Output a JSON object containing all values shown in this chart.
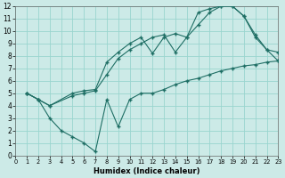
{
  "bg_color": "#cceae7",
  "grid_color": "#99d5cf",
  "line_color": "#1e6e64",
  "marker": "+",
  "xlabel": "Humidex (Indice chaleur)",
  "xlim": [
    0,
    23
  ],
  "ylim": [
    0,
    12
  ],
  "xticks": [
    0,
    1,
    2,
    3,
    4,
    5,
    6,
    7,
    8,
    9,
    10,
    11,
    12,
    13,
    14,
    15,
    16,
    17,
    18,
    19,
    20,
    21,
    22,
    23
  ],
  "yticks": [
    0,
    1,
    2,
    3,
    4,
    5,
    6,
    7,
    8,
    9,
    10,
    11,
    12
  ],
  "line1_x": [
    1,
    2,
    3,
    5,
    6,
    7,
    8,
    9,
    10,
    11,
    12,
    13,
    14,
    15,
    16,
    17,
    18,
    19,
    20,
    21,
    22,
    23
  ],
  "line1_y": [
    5.0,
    4.5,
    4.0,
    5.0,
    5.2,
    5.3,
    7.5,
    8.3,
    9.0,
    9.5,
    8.2,
    9.5,
    9.8,
    9.5,
    10.5,
    11.5,
    12.0,
    12.0,
    11.2,
    9.5,
    8.5,
    8.3
  ],
  "line2_x": [
    1,
    2,
    3,
    5,
    6,
    7,
    8,
    9,
    10,
    11,
    12,
    13,
    14,
    15,
    16,
    17,
    18,
    19,
    20,
    21,
    22,
    23
  ],
  "line2_y": [
    5.0,
    4.5,
    4.0,
    4.8,
    5.0,
    5.2,
    6.5,
    7.8,
    8.5,
    9.0,
    9.5,
    9.7,
    8.3,
    9.5,
    11.5,
    11.8,
    12.0,
    12.0,
    11.2,
    9.7,
    8.5,
    7.6
  ],
  "line3_x": [
    1,
    2,
    3,
    4,
    5,
    6,
    7,
    8,
    9,
    10,
    11,
    12,
    13,
    14,
    15,
    16,
    17,
    18,
    19,
    20,
    21,
    22,
    23
  ],
  "line3_y": [
    5.0,
    4.5,
    3.0,
    2.0,
    1.5,
    1.0,
    0.3,
    4.5,
    2.3,
    4.5,
    5.0,
    5.0,
    5.3,
    5.7,
    6.0,
    6.2,
    6.5,
    6.8,
    7.0,
    7.2,
    7.3,
    7.5,
    7.6
  ]
}
